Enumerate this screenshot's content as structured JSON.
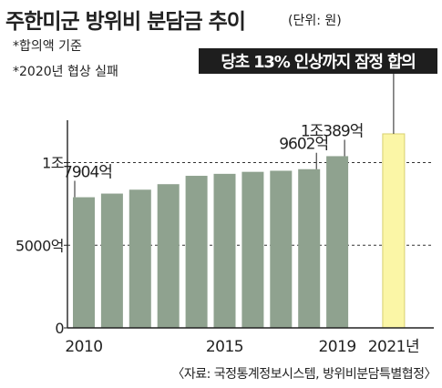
{
  "title": "주한미군 방위비 분담금 추이",
  "unit": "(단위: 원)",
  "notes": [
    "*합의액 기준",
    "*2020년 협상 실패"
  ],
  "source": "〈자료: 국정통계정보시스템, 방위비분담특별협정〉",
  "colors": {
    "bar": "#8fa28f",
    "highlight_bar": "#fbf6a6",
    "highlight_bar_border": "#d8d070",
    "callout_bg": "#1e1e1e",
    "callout_text": "#ffffff"
  },
  "chart_data": {
    "type": "bar",
    "title": "주한미군 방위비 분담금 추이",
    "unit": "(단위: 원)",
    "categories": [
      "2010",
      "2011",
      "2012",
      "2013",
      "2014",
      "2015",
      "2016",
      "2017",
      "2018",
      "2019",
      "2020",
      "2021"
    ],
    "values_eok": [
      7904,
      8125,
      8361,
      8695,
      9200,
      9320,
      9441,
      9507,
      9602,
      10389,
      null,
      11739
    ],
    "ylim_eok": [
      0,
      13500
    ],
    "y_ticks": [
      {
        "value": 0,
        "label": "0"
      },
      {
        "value": 5000,
        "label": "5000억"
      },
      {
        "value": 10000,
        "label": "1조"
      }
    ],
    "x_tick_labels": [
      {
        "category": "2010",
        "label": "2010"
      },
      {
        "category": "2015",
        "label": "2015"
      },
      {
        "category": "2019",
        "label": "2019"
      },
      {
        "category": "2021",
        "label": "2021년"
      }
    ],
    "data_labels": [
      {
        "category": "2010",
        "label": "7904억"
      },
      {
        "category": "2018",
        "label": "9602억"
      },
      {
        "category": "2019",
        "label": "1조389억"
      }
    ],
    "highlight": {
      "category": "2021",
      "label": "당초 13% 인상까지 잠정 합의"
    },
    "reference_lines_eok": [
      5000,
      10000
    ]
  }
}
